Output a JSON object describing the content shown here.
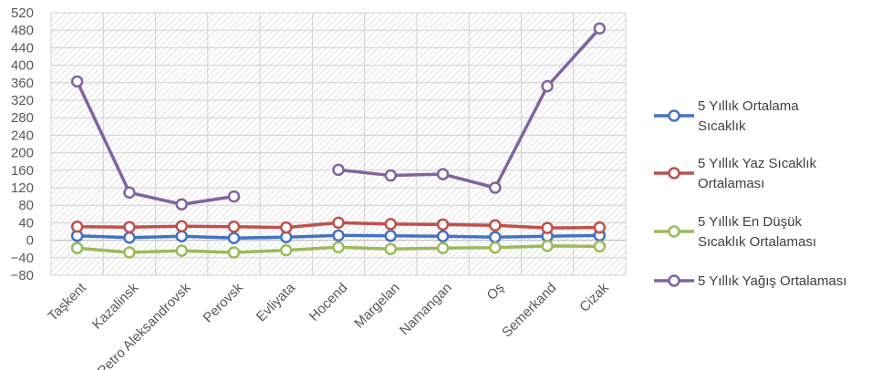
{
  "chart_data": {
    "type": "line",
    "title": "",
    "xlabel": "",
    "ylabel": "",
    "ylim": [
      -80,
      520
    ],
    "ytick_step": 40,
    "grid": true,
    "legend_position": "right",
    "categories": [
      "Taşkent",
      "Kazalinsk",
      "Petro Aleksandrovsk",
      "Perovsk",
      "Evliyata",
      "Hocend",
      "Margelan",
      "Namangan",
      "Oş",
      "Semerkand",
      "Cizak"
    ],
    "series": [
      {
        "name": "5 Yıllık Ortalama Sıcaklık",
        "legend_lines": [
          "5 Yıllık Ortalama",
          "Sıcaklık"
        ],
        "color": "#4472C4",
        "values": [
          10,
          6,
          9,
          5,
          7,
          11,
          10,
          9,
          7,
          9,
          11
        ]
      },
      {
        "name": "5 Yıllık Yaz Sıcaklık Ortalaması",
        "legend_lines": [
          "5 Yıllık Yaz Sıcaklık",
          "Ortalaması"
        ],
        "color": "#C0504D",
        "values": [
          31,
          30,
          32,
          31,
          29,
          40,
          37,
          36,
          34,
          28,
          29
        ]
      },
      {
        "name": "5 Yıllık En Düşük Sıcaklık Ortalaması",
        "legend_lines": [
          "5 Yıllık En Düşük",
          "Sıcaklık Ortalaması"
        ],
        "color": "#9BBB59",
        "values": [
          -18,
          -28,
          -24,
          -28,
          -23,
          -16,
          -20,
          -18,
          -17,
          -13,
          -14
        ]
      },
      {
        "name": "5 Yıllık Yağış Ortalaması",
        "legend_lines": [
          "5 Yıllık Yağış Ortalaması"
        ],
        "color": "#8064A2",
        "values": [
          363,
          109,
          82,
          100,
          null,
          161,
          148,
          151,
          120,
          352,
          484
        ]
      }
    ]
  }
}
